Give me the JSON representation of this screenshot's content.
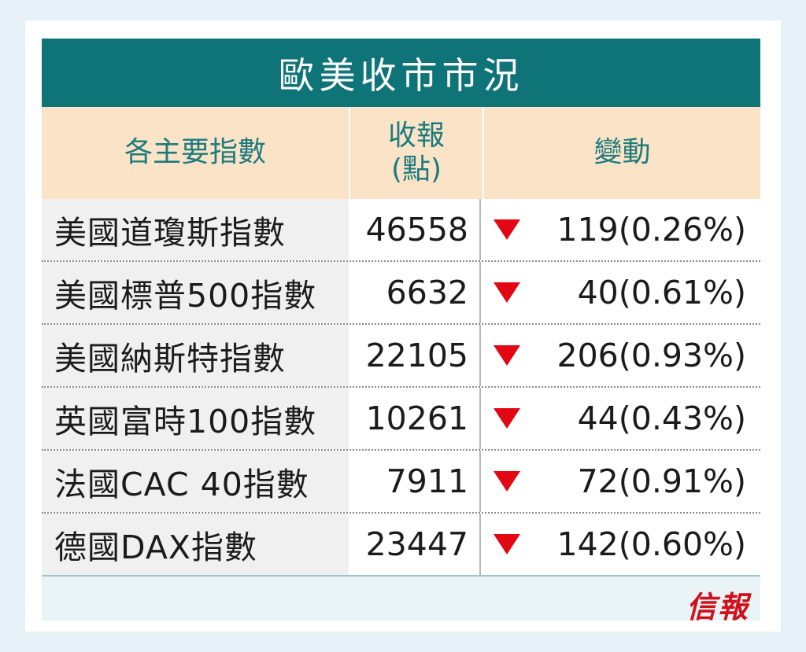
{
  "title": "歐美收市市況",
  "headers": {
    "name": "各主要指數",
    "close_line1": "收報",
    "close_line2": "(點)",
    "change": "變動"
  },
  "rows": [
    {
      "name": "美國道瓊斯指數",
      "close": "46558",
      "direction": "down",
      "change": "119(0.26%)"
    },
    {
      "name": "美國標普500指數",
      "close": "6632",
      "direction": "down",
      "change": "40(0.61%)"
    },
    {
      "name": "美國納斯特指數",
      "close": "22105",
      "direction": "down",
      "change": "206(0.93%)"
    },
    {
      "name": "英國富時100指數",
      "close": "10261",
      "direction": "down",
      "change": "44(0.43%)"
    },
    {
      "name": "法國CAC 40指數",
      "close": "7911",
      "direction": "down",
      "change": "72(0.91%)"
    },
    {
      "name": "德國DAX指數",
      "close": "23447",
      "direction": "down",
      "change": "142(0.60%)"
    }
  ],
  "logo": "信報",
  "colors": {
    "title_bg": "#0f7478",
    "header_bg": "#fbe3c8",
    "header_text": "#1d7b7e",
    "down_arrow": "#e30613",
    "logo": "#d0111b"
  },
  "icons": {
    "down": "down-triangle-icon"
  }
}
